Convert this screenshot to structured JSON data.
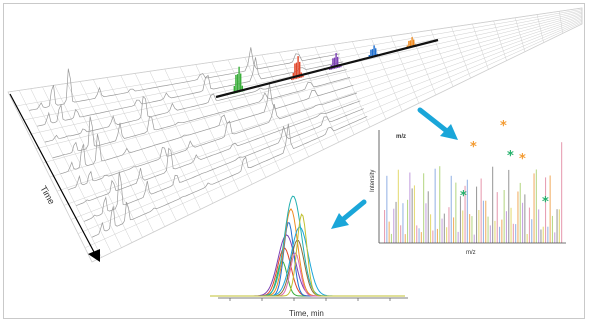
{
  "labels": {
    "time_axis": "Time",
    "ms_x_top": "m/z",
    "ms_y": "Intensity",
    "ms_x_bottom": "m/z",
    "xic_x": "Time, min"
  },
  "marker_glyph": "*",
  "colors": {
    "background": "#ffffff",
    "grid": "#cfcfcf",
    "trace": "#9a9a9a",
    "arrow": "#1aa6d9",
    "time_axis": "#000000",
    "slice_green": "#3aae3a",
    "slice_red": "#e1462a",
    "slice_purple": "#7b3fb3",
    "slice_blue": "#1f6fd0",
    "slice_orange": "#ef8a1f",
    "marker_orange": "#f39c33",
    "marker_green": "#23b06a"
  },
  "icons": [
    "arrow-icon",
    "star-marker-icon"
  ]
}
